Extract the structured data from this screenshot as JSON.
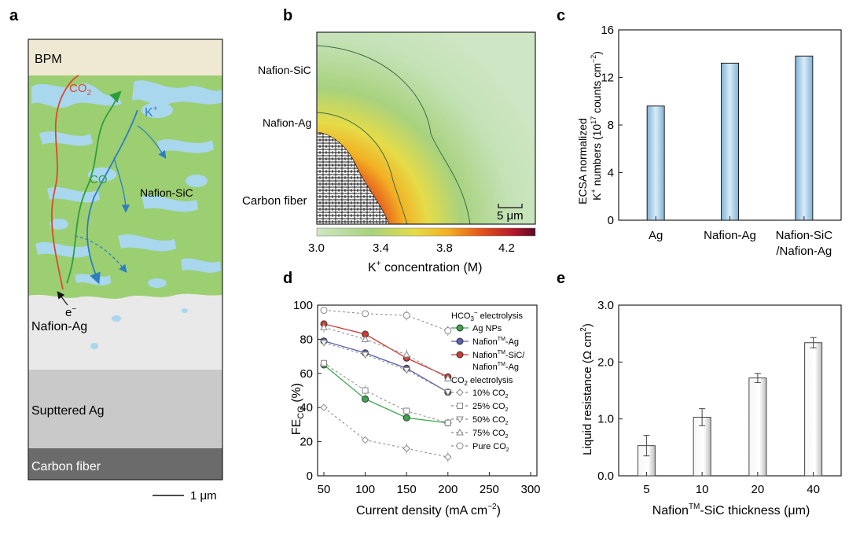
{
  "panels": {
    "a": "a",
    "b": "b",
    "c": "c",
    "d": "d",
    "e": "e"
  },
  "colors": {
    "bpm": "#efe8d2",
    "nafion_sic": "#9ccf72",
    "water": "#a9d7ee",
    "nafion_ag": "#e9e9e9",
    "sputtered_ag": "#c9c9c9",
    "carbon": "#6b6b6b",
    "co2_path": "#d94a2e",
    "co_path": "#2e9e3c",
    "k_path": "#2e7fc0"
  },
  "schematic": {
    "layers": [
      "BPM",
      "Nafion-Ag",
      "Supttered Ag",
      "Carbon fiber"
    ],
    "co2_label": "CO",
    "co2_sub": "2",
    "co_label": "CO",
    "k_label": "K",
    "k_sup": "+",
    "electron_label": "e",
    "electron_sup": "−",
    "nafion_sic_label": "Nafion-SiC",
    "scale_bar": "1 μm"
  },
  "map": {
    "labels": {
      "nafion_sic": "Nafion-SiC",
      "nafion_ag": "Nafion-Ag",
      "carbon_fiber": "Carbon fiber"
    },
    "scale_bar": "5 μm",
    "colorbar_ticks": [
      "3.0",
      "3.4",
      "3.8",
      "4.2"
    ],
    "colorbar_label": "K",
    "colorbar_label_sup": "+",
    "colorbar_label_rest": " concentration (M)"
  },
  "chart_data": [
    {
      "id": "c",
      "type": "bar",
      "categories": [
        "Ag",
        "Nafion-Ag",
        "Nafion-SiC\n/Nafion-Ag"
      ],
      "category_lines": [
        [
          "Ag"
        ],
        [
          "Nafion-Ag"
        ],
        [
          "Nafion-SiC",
          "/Nafion-Ag"
        ]
      ],
      "values": [
        9.6,
        13.2,
        13.8
      ],
      "ylim": [
        0,
        16
      ],
      "yticks": [
        "0",
        "4",
        "8",
        "12",
        "16"
      ],
      "ylabel_line1": "ECSA normalized",
      "ylabel_line2": "K",
      "ylabel_line2_sup": "+",
      "ylabel_line2_rest": " numbers (10",
      "ylabel_line2_sup2": "17",
      "ylabel_line2_rest2": " counts cm",
      "ylabel_line2_sup3": "−2",
      "ylabel_line2_end": ")"
    },
    {
      "id": "d",
      "type": "line",
      "x": [
        50,
        100,
        150,
        200
      ],
      "xlim": [
        50,
        300
      ],
      "ylim": [
        0,
        100
      ],
      "xticks": [
        "50",
        "100",
        "150",
        "200",
        "250",
        "300"
      ],
      "yticks": [
        "0",
        "20",
        "40",
        "60",
        "80",
        "100"
      ],
      "xlabel": "Current density (mA cm",
      "xlabel_sup": "−2",
      "xlabel_end": ")",
      "ylabel": "FE",
      "ylabel_sub": "CO",
      "ylabel_end": " (%)",
      "legend_title1": "HCO",
      "legend_title1_sub": "3",
      "legend_title1_sup": "−",
      "legend_title1_rest": " electrolysis",
      "legend_title2": "CO",
      "legend_title2_sub": "2",
      "legend_title2_rest": " electrolysis",
      "series": [
        {
          "name": "Ag NPs",
          "values": [
            65,
            45,
            34,
            31
          ],
          "err": [
            2,
            2,
            2,
            2
          ],
          "style": "solid",
          "color": "#3aa84a"
        },
        {
          "name": "Nafion-Ag",
          "name_base": "Nafion",
          "name_sup": "TM",
          "name_rest": "-Ag",
          "values": [
            79,
            72,
            63,
            49
          ],
          "err": [
            2,
            2,
            2,
            2
          ],
          "style": "solid",
          "color": "#5a5fb0"
        },
        {
          "name": "Nafion-SiC/Nafion-Ag",
          "name_base": "Nafion",
          "name_sup": "TM",
          "name_rest": "-SiC/",
          "name_line2_base": "Nafion",
          "name_line2_sup": "TM",
          "name_line2_rest": "-Ag",
          "values": [
            89,
            83,
            69,
            58
          ],
          "err": [
            2,
            2,
            2,
            2
          ],
          "style": "solid",
          "color": "#d03a34"
        },
        {
          "name": "10% CO2",
          "name_base": "10% CO",
          "name_sub": "2",
          "values": [
            40,
            21,
            16,
            11
          ],
          "err": [
            0,
            2,
            3,
            3
          ],
          "style": "dashed",
          "color": "#888888"
        },
        {
          "name": "25% CO2",
          "name_base": "25% CO",
          "name_sub": "2",
          "values": [
            66,
            50,
            38,
            31
          ],
          "err": [
            2,
            3,
            2,
            2
          ],
          "style": "dashed",
          "color": "#888888"
        },
        {
          "name": "50% CO2",
          "name_base": "50% CO",
          "name_sub": "2",
          "values": [
            78,
            71,
            62,
            49
          ],
          "err": [
            2,
            2,
            2,
            2
          ],
          "style": "dashed",
          "color": "#888888"
        },
        {
          "name": "75% CO2",
          "name_base": "75% CO",
          "name_sub": "2",
          "values": [
            87,
            80,
            71,
            57
          ],
          "err": [
            3,
            2,
            3,
            2
          ],
          "style": "dashed",
          "color": "#888888"
        },
        {
          "name": "Pure CO2",
          "name_base": "Pure CO",
          "name_sub": "2",
          "values": [
            97,
            95,
            94,
            85
          ],
          "err": [
            2,
            2,
            3,
            3
          ],
          "style": "dashed",
          "color": "#888888"
        }
      ]
    },
    {
      "id": "e",
      "type": "bar",
      "categories": [
        "5",
        "10",
        "20",
        "40"
      ],
      "values": [
        0.53,
        1.03,
        1.72,
        2.34
      ],
      "err": [
        0.18,
        0.15,
        0.08,
        0.09
      ],
      "ylim": [
        0,
        3
      ],
      "yticks": [
        "0.0",
        "1.0",
        "2.0",
        "3.0"
      ],
      "xlabel": "Nafion",
      "xlabel_sup": "TM",
      "xlabel_rest": "-SiC thickness (μm)",
      "ylabel": "Liquid resistance (Ω cm",
      "ylabel_sup": "2",
      "ylabel_end": ")"
    }
  ]
}
